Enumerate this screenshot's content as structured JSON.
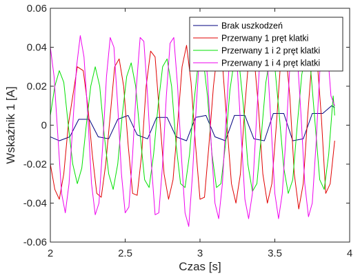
{
  "chart_data": {
    "type": "line",
    "xlabel": "Czas [s]",
    "ylabel": "Wskaźnik 1 [A]",
    "xlim": [
      2,
      4
    ],
    "ylim": [
      -0.06,
      0.06
    ],
    "xticks": [
      2,
      2.5,
      3,
      3.5,
      4
    ],
    "xtick_labels": [
      "2",
      "2.5",
      "3",
      "3.5",
      "4"
    ],
    "yticks": [
      -0.06,
      -0.04,
      -0.02,
      0,
      0.02,
      0.04,
      0.06
    ],
    "ytick_labels": [
      "-0.06",
      "-0.04",
      "-0.02",
      "0",
      "0.02",
      "0.04",
      "0.06"
    ],
    "grid": false,
    "legend_position": "top-right",
    "series": [
      {
        "name": "Brak uszkodzeń",
        "color": "#00007f",
        "x": [
          2.0,
          2.06,
          2.13,
          2.19,
          2.26,
          2.32,
          2.39,
          2.45,
          2.52,
          2.58,
          2.65,
          2.71,
          2.78,
          2.84,
          2.91,
          2.97,
          3.04,
          3.1,
          3.17,
          3.23,
          3.3,
          3.36,
          3.43,
          3.49,
          3.56,
          3.62,
          3.69,
          3.75,
          3.82,
          3.88,
          3.9
        ],
        "y": [
          -0.006,
          -0.008,
          -0.006,
          0.003,
          0.003,
          -0.006,
          -0.007,
          0.003,
          0.005,
          -0.005,
          -0.007,
          0.004,
          0.004,
          -0.006,
          -0.008,
          0.004,
          0.005,
          -0.006,
          -0.008,
          0.005,
          0.005,
          -0.007,
          -0.008,
          0.006,
          0.006,
          -0.008,
          -0.007,
          0.006,
          0.006,
          0.01,
          0.009
        ]
      },
      {
        "name": "Przerwany 1 pręt klatki",
        "color": "#e00000",
        "x": [
          2.0,
          2.03,
          2.06,
          2.09,
          2.12,
          2.18,
          2.22,
          2.25,
          2.28,
          2.31,
          2.34,
          2.37,
          2.4,
          2.43,
          2.46,
          2.49,
          2.52,
          2.55,
          2.58,
          2.61,
          2.64,
          2.67,
          2.7,
          2.73,
          2.76,
          2.79,
          2.82,
          2.85,
          2.88,
          2.91,
          2.94,
          2.97,
          3.0,
          3.03,
          3.06,
          3.09,
          3.12,
          3.15,
          3.18,
          3.21,
          3.24,
          3.27,
          3.3,
          3.33,
          3.36,
          3.39,
          3.42,
          3.45,
          3.48,
          3.51,
          3.54,
          3.57,
          3.6,
          3.63,
          3.66,
          3.69,
          3.72,
          3.75,
          3.78,
          3.81,
          3.84,
          3.87,
          3.9
        ],
        "y": [
          -0.02,
          -0.033,
          -0.038,
          -0.025,
          0.0,
          0.03,
          0.028,
          0.01,
          -0.015,
          -0.035,
          -0.037,
          -0.02,
          0.005,
          0.03,
          0.034,
          0.02,
          -0.01,
          -0.035,
          -0.036,
          -0.015,
          0.02,
          0.038,
          0.035,
          0.005,
          -0.025,
          -0.038,
          -0.028,
          0.0,
          0.03,
          0.041,
          0.022,
          -0.01,
          -0.038,
          -0.037,
          -0.01,
          0.02,
          0.04,
          0.032,
          0.0,
          -0.03,
          -0.04,
          -0.025,
          0.01,
          0.038,
          0.036,
          0.01,
          -0.025,
          -0.04,
          -0.03,
          0.0,
          0.034,
          0.04,
          0.015,
          -0.025,
          -0.043,
          -0.03,
          0.005,
          0.036,
          0.036,
          0.005,
          -0.035,
          -0.03,
          -0.008
        ]
      },
      {
        "name": "Przerwany 1 i 2 pręt klatki",
        "color": "#00e000",
        "x": [
          2.0,
          2.03,
          2.06,
          2.09,
          2.12,
          2.15,
          2.18,
          2.21,
          2.24,
          2.27,
          2.3,
          2.33,
          2.36,
          2.39,
          2.42,
          2.45,
          2.48,
          2.51,
          2.54,
          2.57,
          2.6,
          2.63,
          2.66,
          2.69,
          2.72,
          2.75,
          2.78,
          2.81,
          2.84,
          2.87,
          2.9,
          2.93,
          2.96,
          2.99,
          3.02,
          3.05,
          3.08,
          3.11,
          3.14,
          3.17,
          3.2,
          3.23,
          3.26,
          3.29,
          3.32,
          3.35,
          3.38,
          3.41,
          3.44,
          3.47,
          3.5,
          3.53,
          3.56,
          3.59,
          3.62,
          3.65,
          3.68,
          3.71,
          3.74,
          3.77,
          3.8,
          3.83,
          3.86,
          3.89,
          3.9
        ],
        "y": [
          0.005,
          0.02,
          0.028,
          0.022,
          0.0,
          -0.02,
          -0.03,
          -0.022,
          0.0,
          0.02,
          0.03,
          0.02,
          -0.005,
          -0.025,
          -0.033,
          -0.02,
          0.005,
          0.025,
          0.032,
          0.02,
          -0.005,
          -0.028,
          -0.032,
          -0.015,
          0.01,
          0.03,
          0.034,
          0.02,
          -0.01,
          -0.03,
          -0.032,
          -0.015,
          0.012,
          0.033,
          0.035,
          0.015,
          -0.015,
          -0.032,
          -0.03,
          -0.01,
          0.018,
          0.034,
          0.033,
          0.01,
          -0.02,
          -0.034,
          -0.03,
          -0.005,
          0.022,
          0.036,
          0.03,
          0.005,
          -0.022,
          -0.035,
          -0.028,
          0.0,
          0.026,
          0.038,
          0.028,
          0.0,
          -0.028,
          -0.033,
          -0.015,
          0.015,
          0.005
        ]
      },
      {
        "name": "Przerwany 1 i 4 pręt klatki",
        "color": "#ee00ee",
        "x": [
          2.0,
          2.025,
          2.05,
          2.075,
          2.1,
          2.125,
          2.15,
          2.175,
          2.2,
          2.225,
          2.25,
          2.275,
          2.3,
          2.325,
          2.35,
          2.375,
          2.4,
          2.425,
          2.45,
          2.475,
          2.5,
          2.525,
          2.55,
          2.575,
          2.6,
          2.625,
          2.65,
          2.675,
          2.7,
          2.725,
          2.75,
          2.775,
          2.8,
          2.825,
          2.85,
          2.875,
          2.9,
          2.925,
          2.95,
          2.975,
          3.0,
          3.025,
          3.05,
          3.075,
          3.1,
          3.125,
          3.15,
          3.175,
          3.2,
          3.225,
          3.25,
          3.275,
          3.3,
          3.325,
          3.35,
          3.375,
          3.4,
          3.425,
          3.45,
          3.475,
          3.5,
          3.525,
          3.55,
          3.575,
          3.6,
          3.625,
          3.65,
          3.675,
          3.7,
          3.725,
          3.75,
          3.775,
          3.8,
          3.825,
          3.85,
          3.875,
          3.9
        ],
        "y": [
          0.04,
          0.025,
          -0.005,
          -0.035,
          -0.045,
          -0.03,
          0.0,
          0.03,
          0.046,
          0.035,
          0.005,
          -0.03,
          -0.046,
          -0.04,
          -0.01,
          0.025,
          0.045,
          0.04,
          0.01,
          -0.025,
          -0.045,
          -0.042,
          -0.015,
          0.02,
          0.045,
          0.043,
          0.015,
          -0.02,
          -0.046,
          -0.045,
          -0.02,
          0.015,
          0.042,
          0.045,
          0.02,
          -0.015,
          -0.045,
          -0.052,
          -0.025,
          0.01,
          0.04,
          0.045,
          0.025,
          -0.01,
          -0.04,
          -0.048,
          -0.03,
          0.005,
          0.038,
          0.046,
          0.028,
          -0.005,
          -0.038,
          -0.048,
          -0.035,
          0.0,
          0.034,
          0.046,
          0.033,
          0.0,
          -0.035,
          -0.048,
          -0.035,
          -0.005,
          0.03,
          0.046,
          0.036,
          0.005,
          -0.03,
          -0.047,
          -0.04,
          -0.01,
          0.027,
          0.045,
          0.04,
          0.015,
          0.01
        ]
      }
    ]
  }
}
